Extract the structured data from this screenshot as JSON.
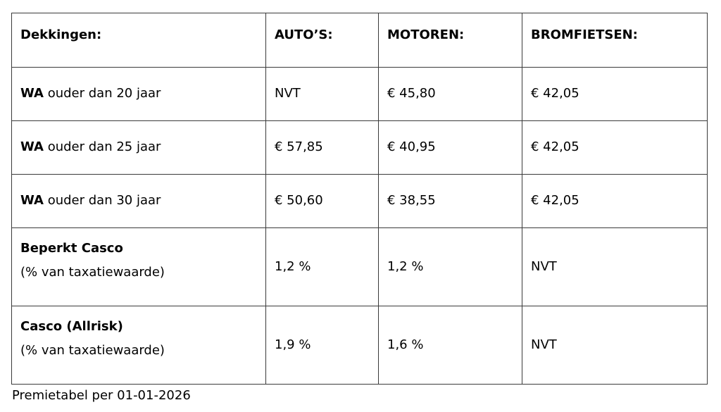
{
  "table": {
    "headers": [
      "Dekkingen:",
      "AUTO’S:",
      "MOTOREN:",
      "BROMFIETSEN:"
    ],
    "rows": [
      {
        "label_bold": "WA",
        "label_rest": " ouder dan 20 jaar",
        "values": [
          "NVT",
          "€ 45,80",
          "€ 42,05"
        ]
      },
      {
        "label_bold": "WA",
        "label_rest": " ouder dan 25 jaar",
        "values": [
          "€ 57,85",
          "€ 40,95",
          "€ 42,05"
        ]
      },
      {
        "label_bold": "WA",
        "label_rest": " ouder dan 30 jaar",
        "values": [
          "€ 50,60",
          "€ 38,55",
          "€ 42,05"
        ]
      },
      {
        "label_bold": "Beperkt Casco",
        "label_sub": "(% van taxatiewaarde)",
        "values": [
          "1,2 %",
          "1,2 %",
          "NVT"
        ]
      },
      {
        "label_bold": "Casco (Allrisk)",
        "label_sub": "(% van taxatiewaarde)",
        "values": [
          "1,9 %",
          "1,6 %",
          "NVT"
        ]
      }
    ]
  },
  "caption": "Premietabel per 01-01-2026"
}
